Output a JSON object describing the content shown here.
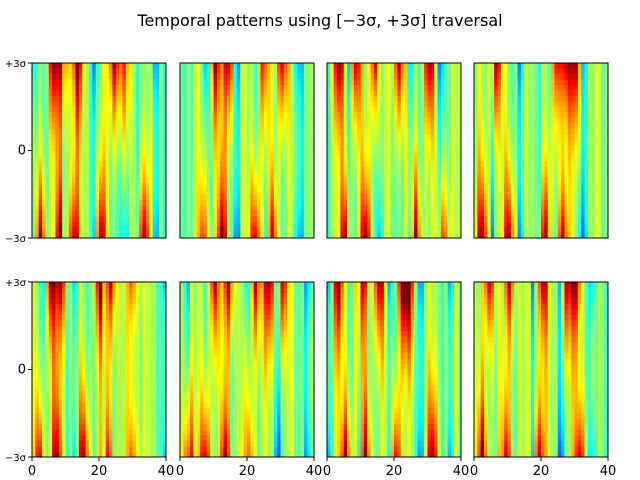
{
  "chart_data": {
    "type": "heatmap",
    "title": "Temporal patterns using [−3σ, +3σ] traversal",
    "colormap": "jet",
    "grid": false,
    "layout": {
      "rows": 2,
      "cols": 4
    },
    "x_axis": {
      "range": [
        0,
        40
      ],
      "ticks": [
        "0",
        "20",
        "40"
      ]
    },
    "y_axis": {
      "range": [
        "−3σ",
        "+3σ"
      ],
      "ticks": [
        "−3σ",
        "0",
        "+3σ"
      ]
    },
    "panels": [
      {
        "id": 1,
        "peaks_top": [
          6,
          9,
          13,
          24,
          27
        ],
        "peaks_bottom": [
          2,
          8,
          12,
          20,
          33
        ]
      },
      {
        "id": 2,
        "peaks_top": [
          10,
          14,
          25,
          30
        ],
        "peaks_bottom": [
          7,
          12,
          22,
          27
        ]
      },
      {
        "id": 3,
        "peaks_top": [
          3,
          8,
          14,
          21,
          30
        ],
        "peaks_bottom": [
          5,
          11,
          26,
          34
        ]
      },
      {
        "id": 4,
        "peaks_top": [
          6,
          24,
          27,
          30
        ],
        "peaks_bottom": [
          2,
          10,
          21,
          26
        ]
      },
      {
        "id": 5,
        "peaks_top": [
          5,
          8,
          20,
          23,
          30
        ],
        "peaks_bottom": [
          2,
          7,
          15,
          22,
          30
        ]
      },
      {
        "id": 6,
        "peaks_top": [
          10,
          14,
          22,
          26,
          30
        ],
        "peaks_bottom": [
          2,
          7,
          13,
          20
        ]
      },
      {
        "id": 7,
        "peaks_top": [
          3,
          10,
          15,
          22,
          24
        ],
        "peaks_bottom": [
          5,
          11,
          20,
          31
        ]
      },
      {
        "id": 8,
        "peaks_top": [
          4,
          10,
          20,
          27,
          30
        ],
        "peaks_bottom": [
          2,
          9,
          19,
          31
        ]
      }
    ]
  }
}
